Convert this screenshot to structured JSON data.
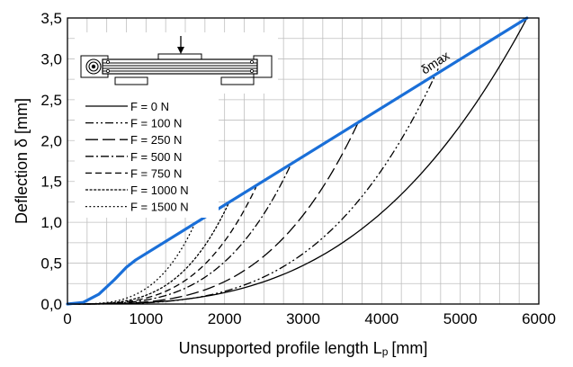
{
  "chart_data": {
    "type": "line",
    "xlabel": "Unsupported profile length L",
    "xlabel_sub": "p",
    "xlabel_unit": "[mm]",
    "ylabel": "Deflection δ [mm]",
    "xlim": [
      0,
      6000
    ],
    "ylim": [
      0,
      3.5
    ],
    "x_ticks": [
      0,
      1000,
      2000,
      3000,
      4000,
      5000,
      6000
    ],
    "y_ticks": [
      0,
      0.5,
      1.0,
      1.5,
      2.0,
      2.5,
      3.0,
      3.5
    ],
    "x_tick_labels": [
      "0",
      "1000",
      "2000",
      "3000",
      "4000",
      "5000",
      "6000"
    ],
    "y_tick_labels": [
      "0,0",
      "0,5",
      "1,0",
      "1,5",
      "2,0",
      "2,5",
      "3,0",
      "3,5"
    ],
    "grid": true,
    "legend_position": "top-left",
    "series": [
      {
        "name": "F = 0 N",
        "dash": "solid",
        "xmax": 5850,
        "ymax": 3.5
      },
      {
        "name": "F = 100 N",
        "dash": "dashdotdot",
        "xmax": 4720,
        "ymax": 2.88
      },
      {
        "name": "F = 250 N",
        "dash": "longdash",
        "xmax": 3700,
        "ymax": 2.22
      },
      {
        "name": "F = 500 N",
        "dash": "dashdot",
        "xmax": 2830,
        "ymax": 1.68
      },
      {
        "name": "F = 750 N",
        "dash": "dash",
        "xmax": 2400,
        "ymax": 1.43
      },
      {
        "name": "F = 1000 N",
        "dash": "densedash",
        "xmax": 2060,
        "ymax": 1.25
      },
      {
        "name": "F = 1500 N",
        "dash": "dot",
        "xmax": 1620,
        "ymax": 0.98
      }
    ],
    "envelope": {
      "name": "δmax",
      "color": "#1a6fd8",
      "points": [
        [
          0,
          0
        ],
        [
          200,
          0.02
        ],
        [
          400,
          0.12
        ],
        [
          600,
          0.3
        ],
        [
          750,
          0.45
        ],
        [
          870,
          0.54
        ],
        [
          5850,
          3.5
        ]
      ]
    }
  },
  "annotation": {
    "text": "δmax"
  },
  "colors": {
    "envelope": "#1a6fd8",
    "curves": "#000000",
    "grid": "#bfbfbf"
  },
  "inset": {
    "icon": "beam-with-load-arrow-icon"
  }
}
